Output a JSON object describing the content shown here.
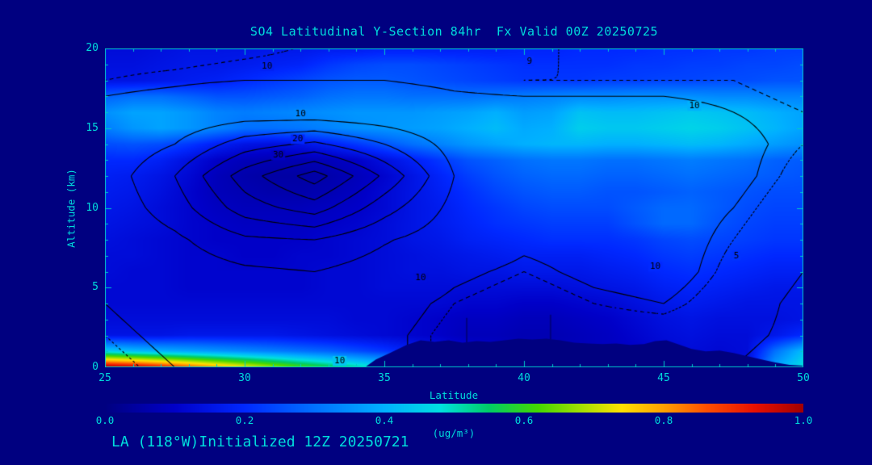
{
  "title": "SO4 Latitudinal Y-Section 84hr  Fx Valid 00Z 20250725",
  "footer": "LA (118°W)Initialized 12Z 20250721",
  "colors": {
    "background": "#000080",
    "text": "#00dcdc",
    "axis": "#00c8c8",
    "contour": "#000000"
  },
  "chart_data": {
    "type": "heatmap",
    "title": "SO4 Latitudinal Y-Section 84hr  Fx Valid 00Z 20250725",
    "xlabel": "Latitude",
    "ylabel": "Altitude (km)",
    "xlim": [
      25,
      50
    ],
    "ylim": [
      0,
      20
    ],
    "x_ticks": [
      25,
      30,
      35,
      40,
      45,
      50
    ],
    "y_ticks": [
      0,
      5,
      10,
      15,
      20
    ],
    "colorbar": {
      "label": "(ug/m³)",
      "min": 0.0,
      "max": 1.0,
      "ticks": [
        "0.0",
        "0.2",
        "0.4",
        "0.6",
        "0.8",
        "1.0"
      ],
      "stops": [
        [
          0.0,
          "#000080"
        ],
        [
          0.1,
          "#0000c8"
        ],
        [
          0.2,
          "#0028ff"
        ],
        [
          0.3,
          "#0070ff"
        ],
        [
          0.4,
          "#00b0ff"
        ],
        [
          0.48,
          "#00e0e0"
        ],
        [
          0.55,
          "#00cc66"
        ],
        [
          0.62,
          "#44d800"
        ],
        [
          0.68,
          "#a0e000"
        ],
        [
          0.74,
          "#ffe000"
        ],
        [
          0.8,
          "#ffa000"
        ],
        [
          0.86,
          "#ff5000"
        ],
        [
          0.93,
          "#e81000"
        ],
        [
          1.0,
          "#a00000"
        ]
      ]
    },
    "so4_grid": {
      "lat_min": 25,
      "lat_max": 50,
      "alt_min": 0,
      "alt_max": 20,
      "order": "rows alt 20 (top) to 0 (bottom); cols lat 25 to 50 step 1",
      "values": [
        [
          0.13,
          0.13,
          0.14,
          0.15,
          0.15,
          0.15,
          0.16,
          0.16,
          0.17,
          0.17,
          0.18,
          0.18,
          0.18,
          0.18,
          0.18,
          0.19,
          0.19,
          0.2,
          0.2,
          0.2,
          0.21,
          0.21,
          0.22,
          0.22,
          0.23,
          0.23
        ],
        [
          0.14,
          0.14,
          0.15,
          0.16,
          0.16,
          0.17,
          0.18,
          0.19,
          0.22,
          0.24,
          0.25,
          0.25,
          0.24,
          0.23,
          0.22,
          0.21,
          0.21,
          0.21,
          0.21,
          0.22,
          0.22,
          0.23,
          0.23,
          0.24,
          0.24,
          0.25
        ],
        [
          0.15,
          0.15,
          0.16,
          0.17,
          0.18,
          0.2,
          0.22,
          0.24,
          0.26,
          0.27,
          0.27,
          0.26,
          0.25,
          0.24,
          0.23,
          0.22,
          0.22,
          0.22,
          0.23,
          0.23,
          0.24,
          0.24,
          0.25,
          0.25,
          0.26,
          0.26
        ],
        [
          0.28,
          0.3,
          0.3,
          0.28,
          0.26,
          0.26,
          0.27,
          0.28,
          0.3,
          0.31,
          0.31,
          0.3,
          0.3,
          0.3,
          0.31,
          0.32,
          0.33,
          0.34,
          0.34,
          0.35,
          0.35,
          0.35,
          0.34,
          0.34,
          0.33,
          0.33
        ],
        [
          0.35,
          0.38,
          0.38,
          0.36,
          0.33,
          0.32,
          0.33,
          0.34,
          0.35,
          0.36,
          0.36,
          0.36,
          0.37,
          0.38,
          0.4,
          0.37,
          0.38,
          0.43,
          0.42,
          0.42,
          0.43,
          0.44,
          0.43,
          0.42,
          0.4,
          0.38
        ],
        [
          0.32,
          0.36,
          0.38,
          0.36,
          0.33,
          0.3,
          0.3,
          0.31,
          0.33,
          0.35,
          0.36,
          0.37,
          0.38,
          0.4,
          0.42,
          0.39,
          0.4,
          0.45,
          0.44,
          0.44,
          0.45,
          0.46,
          0.45,
          0.43,
          0.41,
          0.38
        ],
        [
          0.25,
          0.26,
          0.25,
          0.22,
          0.18,
          0.15,
          0.14,
          0.15,
          0.18,
          0.22,
          0.26,
          0.3,
          0.33,
          0.36,
          0.38,
          0.4,
          0.41,
          0.41,
          0.4,
          0.4,
          0.41,
          0.42,
          0.41,
          0.39,
          0.37,
          0.35
        ],
        [
          0.2,
          0.2,
          0.18,
          0.14,
          0.1,
          0.08,
          0.07,
          0.07,
          0.08,
          0.1,
          0.14,
          0.18,
          0.22,
          0.26,
          0.28,
          0.3,
          0.31,
          0.31,
          0.3,
          0.3,
          0.31,
          0.32,
          0.31,
          0.3,
          0.28,
          0.27
        ],
        [
          0.18,
          0.17,
          0.15,
          0.12,
          0.08,
          0.06,
          0.05,
          0.05,
          0.06,
          0.08,
          0.11,
          0.15,
          0.19,
          0.23,
          0.26,
          0.28,
          0.29,
          0.29,
          0.28,
          0.28,
          0.29,
          0.3,
          0.29,
          0.28,
          0.27,
          0.26
        ],
        [
          0.17,
          0.16,
          0.14,
          0.11,
          0.08,
          0.07,
          0.06,
          0.06,
          0.07,
          0.09,
          0.12,
          0.15,
          0.18,
          0.21,
          0.24,
          0.26,
          0.27,
          0.27,
          0.26,
          0.26,
          0.27,
          0.28,
          0.27,
          0.26,
          0.25,
          0.25
        ],
        [
          0.16,
          0.15,
          0.13,
          0.11,
          0.09,
          0.08,
          0.08,
          0.08,
          0.09,
          0.1,
          0.12,
          0.15,
          0.17,
          0.2,
          0.22,
          0.24,
          0.25,
          0.25,
          0.25,
          0.27,
          0.29,
          0.29,
          0.27,
          0.25,
          0.24,
          0.24
        ],
        [
          0.15,
          0.14,
          0.13,
          0.11,
          0.1,
          0.09,
          0.09,
          0.09,
          0.1,
          0.11,
          0.13,
          0.15,
          0.17,
          0.19,
          0.21,
          0.22,
          0.23,
          0.23,
          0.23,
          0.26,
          0.29,
          0.29,
          0.26,
          0.24,
          0.23,
          0.23
        ],
        [
          0.14,
          0.13,
          0.12,
          0.11,
          0.1,
          0.1,
          0.1,
          0.1,
          0.11,
          0.12,
          0.13,
          0.15,
          0.16,
          0.18,
          0.19,
          0.2,
          0.21,
          0.21,
          0.21,
          0.22,
          0.24,
          0.25,
          0.24,
          0.23,
          0.22,
          0.22
        ],
        [
          0.13,
          0.13,
          0.12,
          0.11,
          0.11,
          0.1,
          0.1,
          0.11,
          0.11,
          0.12,
          0.13,
          0.14,
          0.15,
          0.16,
          0.17,
          0.18,
          0.18,
          0.18,
          0.19,
          0.2,
          0.22,
          0.23,
          0.22,
          0.21,
          0.2,
          0.2
        ],
        [
          0.13,
          0.12,
          0.12,
          0.11,
          0.11,
          0.11,
          0.11,
          0.11,
          0.12,
          0.12,
          0.13,
          0.14,
          0.14,
          0.15,
          0.15,
          0.16,
          0.16,
          0.16,
          0.17,
          0.18,
          0.2,
          0.21,
          0.2,
          0.19,
          0.18,
          0.18
        ],
        [
          0.12,
          0.12,
          0.12,
          0.11,
          0.11,
          0.11,
          0.11,
          0.11,
          0.12,
          0.12,
          0.13,
          0.13,
          0.13,
          0.13,
          0.13,
          0.13,
          0.13,
          0.14,
          0.15,
          0.16,
          0.18,
          0.19,
          0.18,
          0.17,
          0.16,
          0.16
        ],
        [
          0.12,
          0.12,
          0.12,
          0.12,
          0.12,
          0.12,
          0.12,
          0.12,
          0.12,
          0.12,
          0.12,
          0.12,
          0.12,
          0.11,
          0.11,
          0.1,
          0.1,
          0.11,
          0.12,
          0.14,
          0.16,
          0.17,
          0.16,
          0.15,
          0.15,
          0.15
        ],
        [
          0.13,
          0.13,
          0.13,
          0.13,
          0.13,
          0.13,
          0.13,
          0.13,
          0.13,
          0.12,
          0.12,
          0.11,
          0.1,
          0.09,
          0.09,
          0.08,
          0.08,
          0.09,
          0.1,
          0.12,
          0.14,
          0.15,
          0.14,
          0.14,
          0.14,
          0.15
        ],
        [
          0.15,
          0.15,
          0.15,
          0.16,
          0.16,
          0.16,
          0.16,
          0.15,
          0.14,
          0.13,
          0.12,
          0.11,
          0.1,
          0.08,
          0.08,
          0.07,
          0.07,
          0.08,
          0.09,
          0.11,
          0.13,
          0.14,
          0.13,
          0.13,
          0.16,
          0.2
        ],
        [
          0.45,
          0.42,
          0.4,
          0.38,
          0.36,
          0.34,
          0.32,
          0.3,
          0.28,
          0.25,
          0.22,
          0.18,
          0.15,
          0.12,
          0.1,
          0.09,
          0.08,
          0.08,
          0.09,
          0.1,
          0.12,
          0.13,
          0.12,
          0.13,
          0.3,
          0.42
        ],
        [
          1.0,
          0.97,
          0.92,
          0.86,
          0.8,
          0.74,
          0.68,
          0.62,
          0.57,
          0.52,
          0.47,
          0.42,
          0.38,
          0.2,
          0.15,
          0.12,
          0.1,
          0.1,
          0.1,
          0.1,
          0.12,
          0.13,
          0.12,
          0.14,
          0.38,
          0.48
        ]
      ]
    },
    "contour_overlay": {
      "order": "rows alt 20 (top) to 0 (bottom) step 2; cols lat 25 to 50 step 2.5",
      "levels": [
        5,
        9,
        10,
        20,
        30,
        40,
        50,
        60,
        70
      ],
      "dashed_levels": [
        9
      ],
      "values": [
        [
          8,
          8,
          8.5,
          9.2,
          9.5,
          9.3,
          9.2,
          8.8,
          8.5,
          8.2,
          7
        ],
        [
          9,
          9.5,
          10,
          10,
          10,
          9.5,
          9,
          9,
          9,
          9,
          8
        ],
        [
          11,
          12,
          14,
          13,
          12,
          11,
          11,
          11,
          11,
          10,
          9
        ],
        [
          12,
          20,
          35,
          42,
          30,
          16,
          13,
          13,
          12,
          11,
          9
        ],
        [
          14,
          30,
          55,
          75,
          48,
          20,
          14,
          14,
          13,
          11,
          8
        ],
        [
          13,
          25,
          45,
          55,
          34,
          17,
          13,
          13,
          12,
          10,
          7
        ],
        [
          12,
          18,
          28,
          30,
          21,
          14,
          11,
          12,
          12,
          9,
          6
        ],
        [
          11,
          14,
          18,
          20,
          15,
          11,
          9,
          11,
          12,
          8,
          5
        ],
        [
          10,
          12,
          14,
          15,
          12,
          9,
          7,
          9,
          10,
          7,
          4
        ],
        [
          9,
          11,
          12,
          12,
          11,
          8,
          6,
          7,
          7,
          6,
          4
        ],
        [
          8,
          10,
          12,
          13,
          11,
          8,
          6,
          6,
          5,
          5,
          3
        ]
      ],
      "labels": [
        {
          "text": "9",
          "lat": 40.2,
          "alt": 19.2
        },
        {
          "text": "10",
          "lat": 30.8,
          "alt": 18.9
        },
        {
          "text": "10",
          "lat": 46.1,
          "alt": 16.4
        },
        {
          "text": "10",
          "lat": 32.0,
          "alt": 15.9
        },
        {
          "text": "20",
          "lat": 31.9,
          "alt": 14.3
        },
        {
          "text": "30",
          "lat": 31.2,
          "alt": 13.3
        },
        {
          "text": "10",
          "lat": 36.3,
          "alt": 5.6
        },
        {
          "text": "10",
          "lat": 44.7,
          "alt": 6.3
        },
        {
          "text": "5",
          "lat": 47.6,
          "alt": 7.0
        },
        {
          "text": "10",
          "lat": 33.4,
          "alt": 0.4
        }
      ]
    },
    "terrain": {
      "profile": [
        [
          34.3,
          0
        ],
        [
          34.7,
          0.5
        ],
        [
          35.2,
          0.9
        ],
        [
          35.8,
          1.4
        ],
        [
          36.3,
          1.7
        ],
        [
          36.8,
          1.6
        ],
        [
          37.3,
          1.7
        ],
        [
          37.8,
          1.55
        ],
        [
          38.3,
          1.65
        ],
        [
          38.8,
          1.6
        ],
        [
          39.3,
          1.7
        ],
        [
          39.8,
          1.8
        ],
        [
          40.3,
          1.75
        ],
        [
          40.8,
          1.8
        ],
        [
          41.3,
          1.7
        ],
        [
          41.8,
          1.55
        ],
        [
          42.3,
          1.5
        ],
        [
          42.8,
          1.45
        ],
        [
          43.3,
          1.5
        ],
        [
          43.8,
          1.4
        ],
        [
          44.3,
          1.45
        ],
        [
          44.7,
          1.65
        ],
        [
          45.1,
          1.7
        ],
        [
          45.5,
          1.45
        ],
        [
          46.0,
          1.15
        ],
        [
          46.5,
          1.0
        ],
        [
          47.0,
          1.05
        ],
        [
          47.5,
          0.9
        ],
        [
          48.0,
          0.7
        ],
        [
          48.5,
          0.5
        ],
        [
          49.0,
          0.3
        ],
        [
          49.5,
          0.15
        ],
        [
          50.0,
          0.1
        ]
      ],
      "spikes": [
        [
          37.95,
          3.1
        ],
        [
          40.95,
          3.3
        ]
      ]
    }
  }
}
